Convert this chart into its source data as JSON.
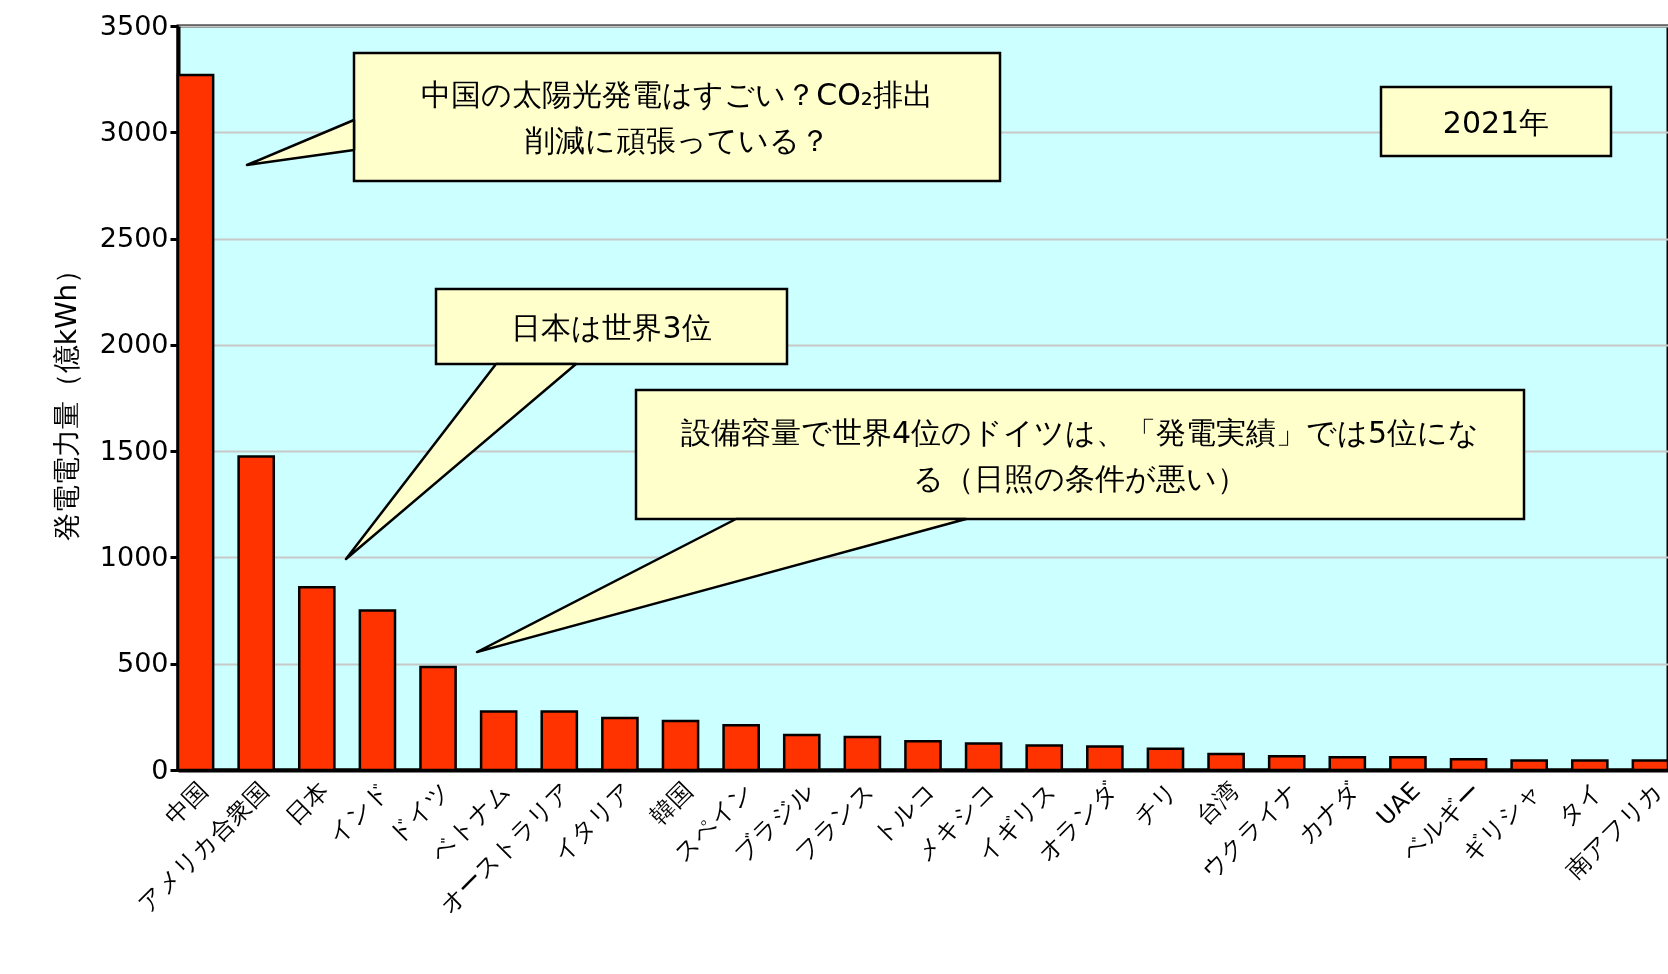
{
  "chart_data": {
    "type": "bar",
    "ylabel": "発電電力量（億kWh）",
    "annotations": [
      "中国の太陽光発電はすごい？CO₂排出削減に頑張っている？",
      "日本は世界3位",
      "設備容量で世界4位のドイツは、「発電実績」では5位になる（日照の条件が悪い）",
      "2021年"
    ],
    "categories": [
      "中国",
      "アメリカ合衆国",
      "日本",
      "インド",
      "ドイツ",
      "ベトナム",
      "オーストラリア",
      "イタリア",
      "韓国",
      "スペイン",
      "ブラジル",
      "フランス",
      "トルコ",
      "メキシコ",
      "イギリス",
      "オランダ",
      "チリ",
      "台湾",
      "ウクライナ",
      "カナダ",
      "UAE",
      "ベルギー",
      "ギリシャ",
      "タイ",
      "南アフリカ"
    ],
    "values": [
      3270,
      1475,
      860,
      750,
      485,
      275,
      275,
      245,
      230,
      210,
      165,
      155,
      135,
      125,
      115,
      110,
      100,
      75,
      65,
      60,
      60,
      50,
      45,
      45,
      45
    ],
    "color": "#ff3300",
    "ylim": [
      0,
      3500
    ],
    "yticks": [
      0,
      500,
      1000,
      1500,
      2000,
      2500,
      3000,
      3500
    ],
    "grid": "y"
  }
}
